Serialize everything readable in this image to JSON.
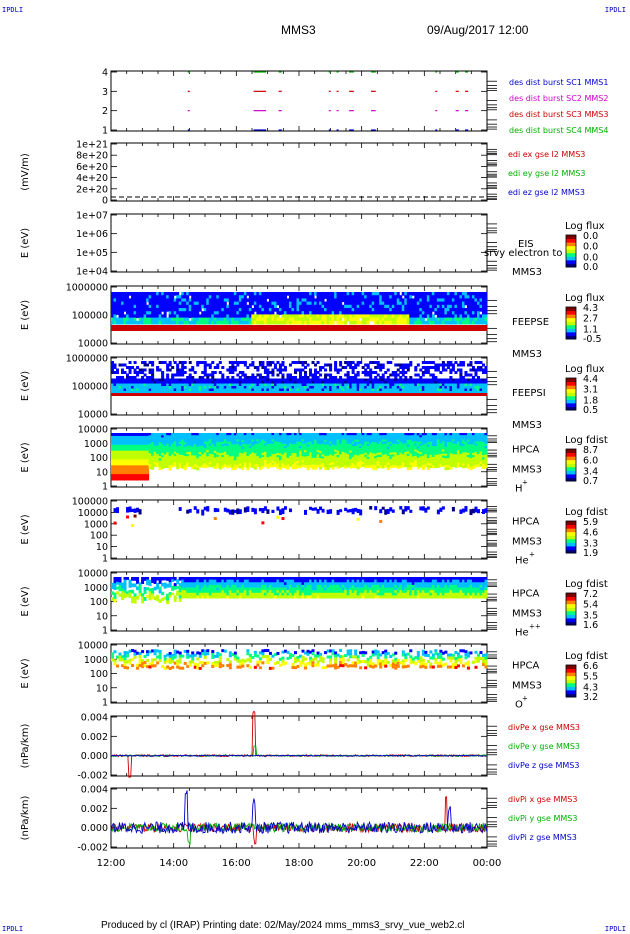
{
  "header": {
    "corner_tl": "IPDLI",
    "corner_tr": "IPDLI",
    "corner_bl": "IPDLI",
    "corner_br": "IPDLI",
    "spacecraft": "MMS3",
    "datetime": "09/Aug/2017 12:00"
  },
  "footer": {
    "text": "Produced by cl (IRAP)   Printing date: 02/May/2024   mms_mms3_srvy_vue_web2.cl"
  },
  "colors": {
    "red": "#cc0000",
    "green": "#00b000",
    "blue": "#0000cc",
    "magenta": "#cc00cc",
    "colorbar": [
      "#000080",
      "#0000ff",
      "#00c0ff",
      "#00ff80",
      "#c0ff00",
      "#ffff00",
      "#ff8000",
      "#ff0000",
      "#800000"
    ]
  },
  "chart_data": [
    {
      "id": "burst",
      "type": "scatter",
      "yticks": [
        "4",
        "3",
        "2",
        "1"
      ],
      "xlim": [
        "12:00",
        "00:00"
      ],
      "legend": [
        {
          "text": "des dist burst SC1 MMS1",
          "color": "#0000cc"
        },
        {
          "text": "des dist burst SC2 MMS2",
          "color": "#cc00cc"
        },
        {
          "text": "des dist burst SC3 MMS3",
          "color": "#cc0000"
        },
        {
          "text": "des dist burst SC4 MMS4",
          "color": "#00b000"
        }
      ],
      "intervals_hours": [
        [
          14.45,
          14.5
        ],
        [
          16.55,
          16.95
        ],
        [
          17.35,
          17.45
        ],
        [
          18.95,
          19.0
        ],
        [
          19.2,
          19.25
        ],
        [
          19.6,
          19.75
        ],
        [
          20.3,
          20.45
        ],
        [
          22.35,
          22.4
        ],
        [
          23.0,
          23.1
        ],
        [
          23.3,
          23.4
        ]
      ],
      "rows": [
        {
          "level": 4,
          "color": "#00b000"
        },
        {
          "level": 3,
          "color": "#cc0000"
        },
        {
          "level": 2,
          "color": "#cc00cc"
        },
        {
          "level": 1,
          "color": "#0000cc"
        }
      ]
    },
    {
      "id": "edi",
      "type": "line",
      "ylabel": "(mV/m)",
      "yticks": [
        "1e+21",
        "8e+20",
        "6e+20",
        "4e+20",
        "2e+20",
        "0"
      ],
      "legend": [
        {
          "text": "edi ex gse l2 MMS3",
          "color": "#cc0000"
        },
        {
          "text": "edi ey gse l2 MMS3",
          "color": "#00b000"
        },
        {
          "text": "edi ez gse l2 MMS3",
          "color": "#0000cc"
        }
      ]
    },
    {
      "id": "eis",
      "type": "heatmap",
      "ylabel": "E (eV)",
      "yticks": [
        "1e+07",
        "1e+06",
        "1e+05",
        "1e+04"
      ],
      "right_label": "EIS",
      "right_sub": "MMS3",
      "overlap_text": "srvy electron to",
      "cbar_title": "Log flux",
      "cbar_ticks": [
        "0.0",
        "0.0",
        "0.0",
        "0.0"
      ]
    },
    {
      "id": "feepse",
      "type": "heatmap",
      "ylabel": "E (eV)",
      "yticks": [
        "1000000",
        "100000",
        "10000"
      ],
      "right_label": "FEEPSE",
      "right_sub": "MMS3",
      "cbar_title": "Log flux",
      "cbar_ticks": [
        "4.3",
        "2.7",
        "1.1",
        "-0.5"
      ]
    },
    {
      "id": "feepsi",
      "type": "heatmap",
      "ylabel": "E (eV)",
      "yticks": [
        "1000000",
        "100000",
        "10000"
      ],
      "right_label": "FEEPSI",
      "right_sub": "MMS3",
      "cbar_title": "Log flux",
      "cbar_ticks": [
        "4.4",
        "3.1",
        "1.8",
        "0.5"
      ]
    },
    {
      "id": "hpca_h",
      "type": "heatmap",
      "ylabel": "E (eV)",
      "yticks": [
        "10000",
        "1000",
        "100",
        "10",
        "1"
      ],
      "right_label": "HPCA",
      "right_sub": "MMS3",
      "species": "H",
      "species_sup": "+",
      "cbar_title": "Log fdist",
      "cbar_ticks": [
        "8.7",
        "6.0",
        "3.4",
        "0.7"
      ]
    },
    {
      "id": "hpca_he",
      "type": "heatmap",
      "ylabel": "E (eV)",
      "yticks": [
        "100000",
        "10000",
        "1000",
        "100",
        "10",
        "1"
      ],
      "right_label": "HPCA",
      "right_sub": "MMS3",
      "species": "He",
      "species_sup": "+",
      "cbar_title": "Log fdist",
      "cbar_ticks": [
        "5.9",
        "4.6",
        "3.3",
        "1.9"
      ]
    },
    {
      "id": "hpca_hepp",
      "type": "heatmap",
      "ylabel": "E (eV)",
      "yticks": [
        "10000",
        "1000",
        "100",
        "10",
        "1"
      ],
      "right_label": "HPCA",
      "right_sub": "MMS3",
      "species": "He",
      "species_sup": "++",
      "cbar_title": "Log fdist",
      "cbar_ticks": [
        "7.2",
        "5.4",
        "3.5",
        "1.6"
      ]
    },
    {
      "id": "hpca_o",
      "type": "heatmap",
      "ylabel": "E (eV)",
      "yticks": [
        "10000",
        "1000",
        "100",
        "10",
        "1"
      ],
      "right_label": "HPCA",
      "right_sub": "MMS3",
      "species": "O",
      "species_sup": "+",
      "cbar_title": "Log fdist",
      "cbar_ticks": [
        "6.6",
        "5.5",
        "4.3",
        "3.2"
      ]
    },
    {
      "id": "divpe",
      "type": "line",
      "ylabel": "(nPa/km)",
      "yticks": [
        "0.004",
        "0.002",
        "0.000",
        "-0.002"
      ],
      "ylim": [
        -0.003,
        0.005
      ],
      "legend": [
        {
          "text": "divPe x gse MMS3",
          "color": "#cc0000"
        },
        {
          "text": "divPe y gse MMS3",
          "color": "#00b000"
        },
        {
          "text": "divPe z gse MMS3",
          "color": "#0000cc"
        }
      ]
    },
    {
      "id": "divpi",
      "type": "line",
      "ylabel": "(nPa/km)",
      "yticks": [
        "0.004",
        "0.002",
        "0.000",
        "-0.002"
      ],
      "ylim": [
        -0.003,
        0.005
      ],
      "legend": [
        {
          "text": "divPi x gse MMS3",
          "color": "#cc0000"
        },
        {
          "text": "divPi y gse MMS3",
          "color": "#00b000"
        },
        {
          "text": "divPi z gse MMS3",
          "color": "#0000cc"
        }
      ]
    }
  ],
  "xaxis": {
    "ticks": [
      "12:00",
      "14:00",
      "16:00",
      "18:00",
      "20:00",
      "22:00",
      "00:00"
    ]
  }
}
